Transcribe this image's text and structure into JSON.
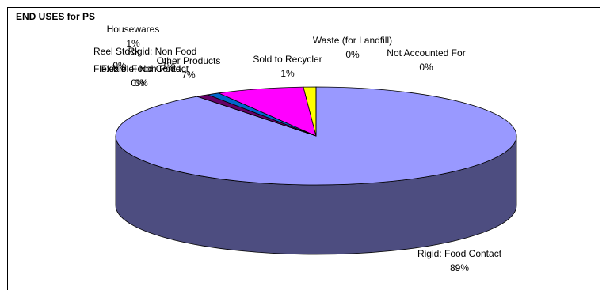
{
  "chart_data": {
    "type": "pie3d",
    "title": "END USES for PS",
    "categories": [
      "Rigid: Food Contact",
      "Flexible: Food Contact",
      "Flexible: Non Food",
      "Reel Stock",
      "Rigid: Non Food",
      "Housewares",
      "Other Products",
      "Sold to Recycler",
      "Waste (for Landfill)",
      "Not Accounted For"
    ],
    "values": [
      89,
      0,
      0,
      0,
      1,
      1,
      7,
      1,
      0,
      0
    ],
    "value_labels": [
      "89%",
      "0%",
      "0%",
      "0%",
      "1%",
      "1%",
      "7%",
      "1%",
      "0%",
      "0%"
    ],
    "colors": [
      "#9999ff",
      "#993366",
      "#ffffcc",
      "#ccffff",
      "#660066",
      "#0066cc",
      "#ff00ff",
      "#ffff00",
      "#00ffff",
      "#800080"
    ]
  }
}
